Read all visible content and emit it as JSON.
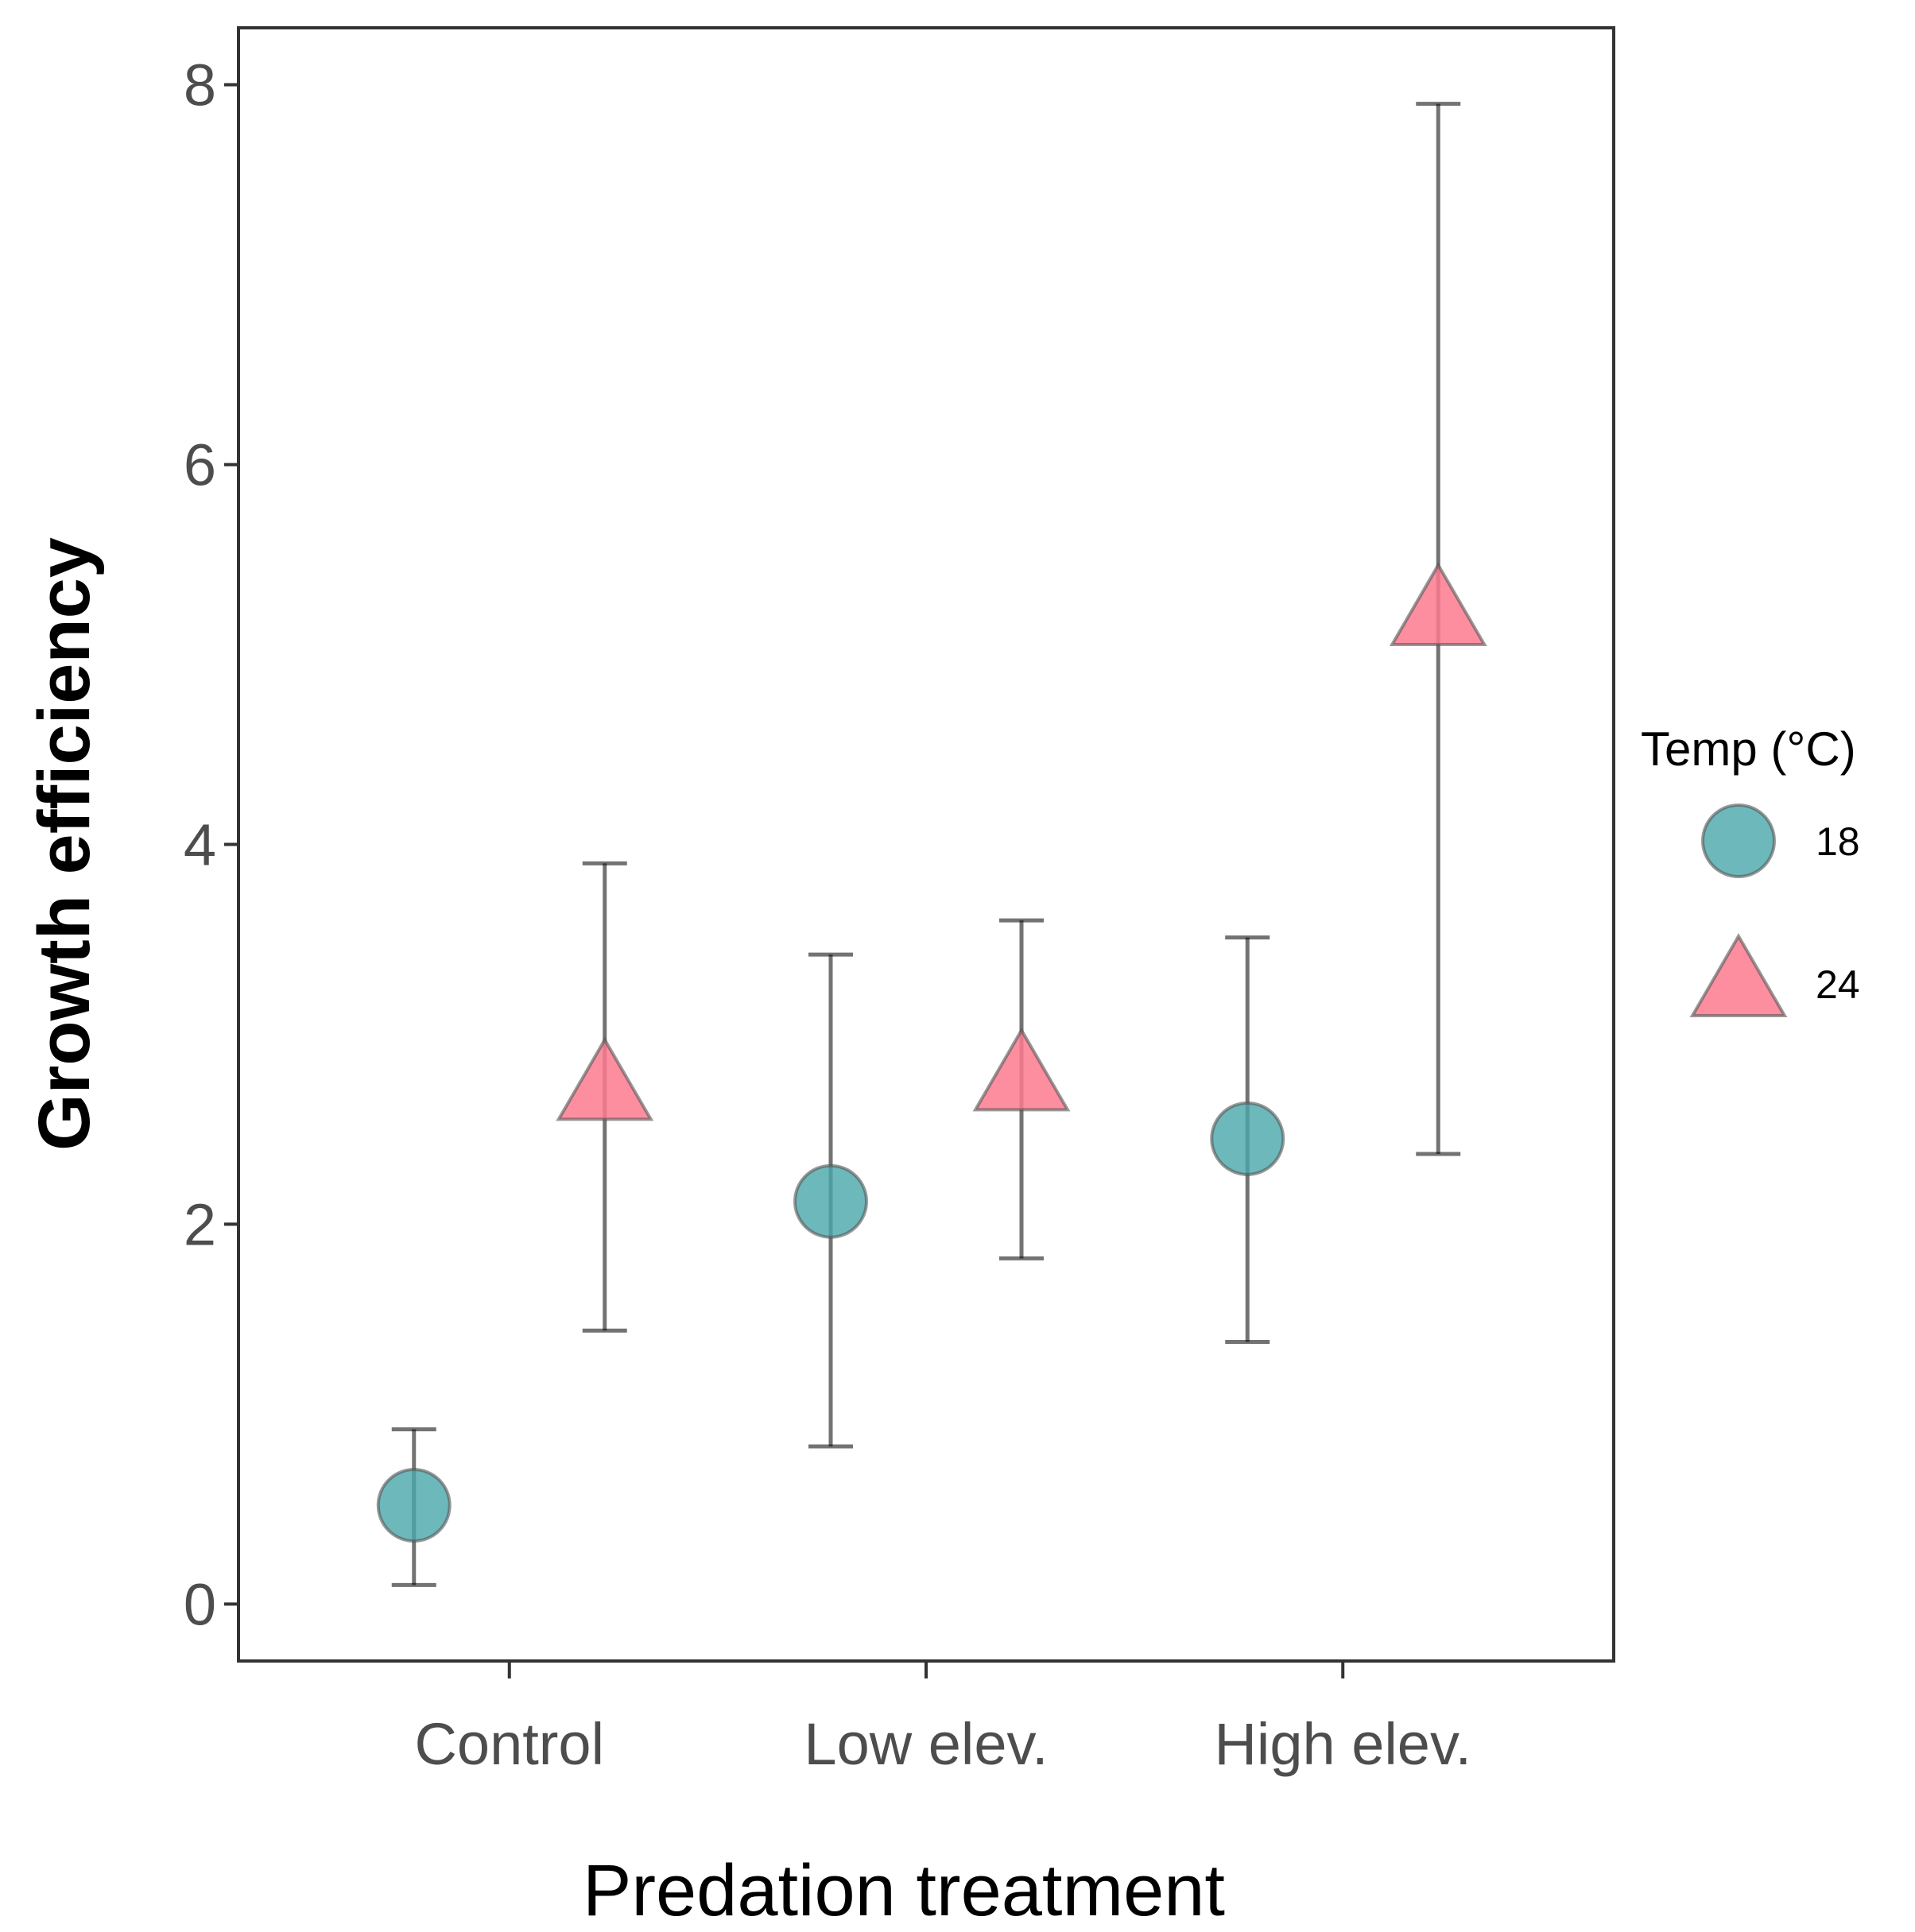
{
  "chart_data": {
    "type": "scatter",
    "title": "",
    "xlabel": "Predation treatment",
    "ylabel": "Growth efficiency",
    "categories": [
      "Control",
      "Low elev.",
      "High elev."
    ],
    "ylim": [
      -0.3,
      8.3
    ],
    "yticks": [
      0,
      2,
      4,
      6,
      8
    ],
    "grid": false,
    "legend": {
      "title": "Temp (°C)",
      "position": "right",
      "entries": [
        {
          "label": "18",
          "shape": "circle",
          "color": "#48a6aa"
        },
        {
          "label": "24",
          "shape": "triangle",
          "color": "#fb7a8f"
        }
      ]
    },
    "series": [
      {
        "name": "18",
        "shape": "circle",
        "color": "#48a6aa",
        "values": [
          0.52,
          2.12,
          2.45
        ],
        "lower": [
          0.1,
          0.83,
          1.38
        ],
        "upper": [
          0.92,
          3.42,
          3.51
        ]
      },
      {
        "name": "24",
        "shape": "triangle",
        "color": "#fb7a8f",
        "values": [
          2.72,
          2.77,
          5.22
        ],
        "lower": [
          1.44,
          1.82,
          2.37
        ],
        "upper": [
          3.9,
          3.6,
          7.9
        ]
      }
    ]
  }
}
